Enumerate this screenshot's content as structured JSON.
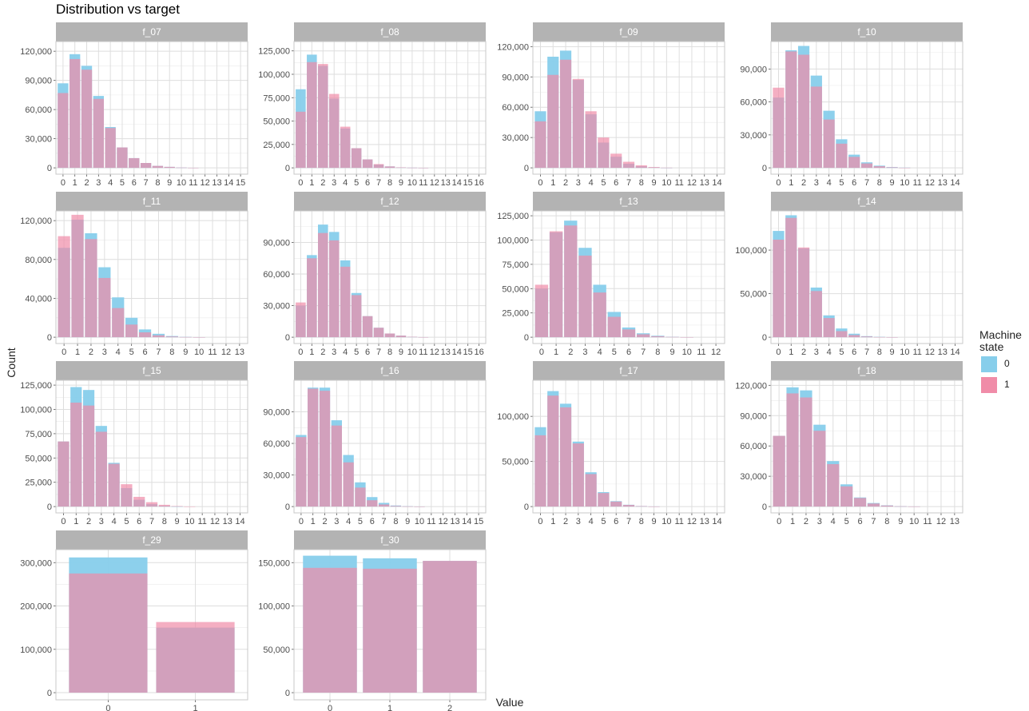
{
  "page": {
    "title": "Distribution vs target",
    "xlabel": "Value",
    "ylabel": "Count"
  },
  "legend": {
    "title_line1": "Machine",
    "title_line2": "state",
    "items": [
      {
        "label": "0",
        "color": "#87CEEB"
      },
      {
        "label": "1",
        "color": "#F08CA8"
      }
    ]
  },
  "chart_data": [
    {
      "type": "bar",
      "title": "f_07",
      "categories": [
        "0",
        "1",
        "2",
        "3",
        "4",
        "5",
        "6",
        "7",
        "8",
        "9",
        "10",
        "11",
        "12",
        "13",
        "14",
        "15"
      ],
      "ylim": [
        0,
        130000
      ],
      "yticks": [
        0,
        30000,
        60000,
        90000,
        120000
      ],
      "yticklabels": [
        "0",
        "30,000",
        "60,000",
        "90,000",
        "120,000"
      ],
      "series": [
        {
          "name": "0",
          "values": [
            87000,
            117000,
            105000,
            74000,
            42000,
            21000,
            10000,
            5000,
            2000,
            1000,
            300,
            100,
            0,
            0,
            0,
            0
          ]
        },
        {
          "name": "1",
          "values": [
            77000,
            112000,
            101000,
            71000,
            41000,
            21000,
            10000,
            5000,
            2000,
            1000,
            300,
            100,
            0,
            0,
            0,
            0
          ]
        }
      ]
    },
    {
      "type": "bar",
      "title": "f_08",
      "categories": [
        "0",
        "1",
        "2",
        "3",
        "4",
        "5",
        "6",
        "7",
        "8",
        "9",
        "10",
        "11",
        "12",
        "13",
        "14",
        "15",
        "16"
      ],
      "ylim": [
        0,
        135000
      ],
      "yticks": [
        0,
        25000,
        50000,
        75000,
        100000,
        125000
      ],
      "yticklabels": [
        "0",
        "25,000",
        "50,000",
        "75,000",
        "100,000",
        "125,000"
      ],
      "series": [
        {
          "name": "0",
          "values": [
            84000,
            121000,
            109000,
            74000,
            42000,
            21000,
            9000,
            3500,
            1500,
            500,
            200,
            50,
            0,
            0,
            0,
            0,
            0
          ]
        },
        {
          "name": "1",
          "values": [
            60000,
            113000,
            111000,
            79000,
            44000,
            21000,
            9000,
            4000,
            1500,
            500,
            200,
            50,
            0,
            0,
            0,
            0,
            0
          ]
        }
      ]
    },
    {
      "type": "bar",
      "title": "f_09",
      "categories": [
        "0",
        "1",
        "2",
        "3",
        "4",
        "5",
        "6",
        "7",
        "8",
        "9",
        "10",
        "11",
        "12",
        "13",
        "14"
      ],
      "ylim": [
        0,
        125000
      ],
      "yticks": [
        0,
        30000,
        60000,
        90000,
        120000
      ],
      "yticklabels": [
        "0",
        "30,000",
        "60,000",
        "90,000",
        "120,000"
      ],
      "series": [
        {
          "name": "0",
          "values": [
            56000,
            110000,
            116000,
            87000,
            53000,
            25000,
            11000,
            4000,
            1500,
            500,
            100,
            0,
            0,
            0,
            0
          ]
        },
        {
          "name": "1",
          "values": [
            46000,
            92000,
            107000,
            88000,
            56000,
            30000,
            14000,
            6000,
            2500,
            800,
            200,
            0,
            0,
            0,
            0
          ]
        }
      ]
    },
    {
      "type": "bar",
      "title": "f_10",
      "categories": [
        "0",
        "1",
        "2",
        "3",
        "4",
        "5",
        "6",
        "7",
        "8",
        "9",
        "10",
        "11",
        "12",
        "13",
        "14"
      ],
      "ylim": [
        0,
        115000
      ],
      "yticks": [
        0,
        30000,
        60000,
        90000
      ],
      "yticklabels": [
        "0",
        "30,000",
        "60,000",
        "90,000"
      ],
      "series": [
        {
          "name": "0",
          "values": [
            64000,
            107000,
            111000,
            84000,
            52000,
            26000,
            12000,
            5000,
            2000,
            700,
            200,
            0,
            0,
            0,
            0
          ]
        },
        {
          "name": "1",
          "values": [
            73000,
            106000,
            103000,
            74000,
            44000,
            22000,
            10000,
            4000,
            1500,
            500,
            100,
            0,
            0,
            0,
            0
          ]
        }
      ]
    },
    {
      "type": "bar",
      "title": "f_11",
      "categories": [
        "0",
        "1",
        "2",
        "3",
        "4",
        "5",
        "6",
        "7",
        "8",
        "9",
        "10",
        "11",
        "12",
        "13"
      ],
      "ylim": [
        0,
        130000
      ],
      "yticks": [
        0,
        40000,
        80000,
        120000
      ],
      "yticklabels": [
        "0",
        "40,000",
        "80,000",
        "120,000"
      ],
      "series": [
        {
          "name": "0",
          "values": [
            92000,
            121000,
            107000,
            72000,
            41000,
            20000,
            8000,
            3500,
            1200,
            300,
            100,
            0,
            0,
            0
          ]
        },
        {
          "name": "1",
          "values": [
            104000,
            126000,
            101000,
            61000,
            30000,
            13000,
            5000,
            2000,
            700,
            200,
            50,
            0,
            0,
            0
          ]
        }
      ]
    },
    {
      "type": "bar",
      "title": "f_12",
      "categories": [
        "0",
        "1",
        "2",
        "3",
        "4",
        "5",
        "6",
        "7",
        "8",
        "9",
        "10",
        "11",
        "12",
        "13",
        "14",
        "15",
        "16"
      ],
      "ylim": [
        0,
        120000
      ],
      "yticks": [
        0,
        30000,
        60000,
        90000
      ],
      "yticklabels": [
        "0",
        "30,000",
        "60,000",
        "90,000"
      ],
      "series": [
        {
          "name": "0",
          "values": [
            30000,
            78000,
            107000,
            100000,
            73000,
            42000,
            20000,
            9000,
            3500,
            1500,
            400,
            100,
            0,
            0,
            0,
            0,
            0
          ]
        },
        {
          "name": "1",
          "values": [
            33000,
            75000,
            99000,
            92000,
            67000,
            40000,
            20000,
            9000,
            3500,
            1500,
            400,
            100,
            0,
            0,
            0,
            0,
            0
          ]
        }
      ]
    },
    {
      "type": "bar",
      "title": "f_13",
      "categories": [
        "0",
        "1",
        "2",
        "3",
        "4",
        "5",
        "6",
        "7",
        "8",
        "9",
        "10",
        "11",
        "12"
      ],
      "ylim": [
        0,
        130000
      ],
      "yticks": [
        0,
        25000,
        50000,
        75000,
        100000,
        125000
      ],
      "yticklabels": [
        "0",
        "25,000",
        "50,000",
        "75,000",
        "100,000",
        "125,000"
      ],
      "series": [
        {
          "name": "0",
          "values": [
            50000,
            108000,
            120000,
            92000,
            54000,
            26000,
            10000,
            4000,
            1500,
            400,
            100,
            0,
            0
          ]
        },
        {
          "name": "1",
          "values": [
            54000,
            109000,
            115000,
            84000,
            46000,
            21000,
            8000,
            3000,
            1000,
            300,
            100,
            0,
            0
          ]
        }
      ]
    },
    {
      "type": "bar",
      "title": "f_14",
      "categories": [
        "0",
        "1",
        "2",
        "3",
        "4",
        "5",
        "6",
        "7",
        "8",
        "9",
        "10",
        "11",
        "12",
        "13",
        "14"
      ],
      "ylim": [
        0,
        145000
      ],
      "yticks": [
        0,
        50000,
        100000
      ],
      "yticklabels": [
        "0",
        "50,000",
        "100,000"
      ],
      "series": [
        {
          "name": "0",
          "values": [
            122000,
            140000,
            102000,
            57000,
            25000,
            10000,
            4000,
            1200,
            400,
            100,
            0,
            0,
            0,
            0,
            0
          ]
        },
        {
          "name": "1",
          "values": [
            112000,
            137000,
            103000,
            53000,
            22000,
            7000,
            2500,
            800,
            200,
            50,
            0,
            0,
            0,
            0,
            0
          ]
        }
      ]
    },
    {
      "type": "bar",
      "title": "f_15",
      "categories": [
        "0",
        "1",
        "2",
        "3",
        "4",
        "5",
        "6",
        "7",
        "8",
        "9",
        "10",
        "11",
        "12",
        "13",
        "14"
      ],
      "ylim": [
        0,
        130000
      ],
      "yticks": [
        0,
        25000,
        50000,
        75000,
        100000,
        125000
      ],
      "yticklabels": [
        "0",
        "25,000",
        "50,000",
        "75,000",
        "100,000",
        "125,000"
      ],
      "series": [
        {
          "name": "0",
          "values": [
            67000,
            123000,
            120000,
            83000,
            45000,
            19000,
            7000,
            2500,
            800,
            200,
            0,
            0,
            0,
            0,
            0
          ]
        },
        {
          "name": "1",
          "values": [
            67000,
            107000,
            104000,
            77000,
            44000,
            23000,
            10000,
            4500,
            1800,
            500,
            100,
            0,
            0,
            0,
            0
          ]
        }
      ]
    },
    {
      "type": "bar",
      "title": "f_16",
      "categories": [
        "0",
        "1",
        "2",
        "3",
        "4",
        "5",
        "6",
        "7",
        "8",
        "9",
        "10",
        "11",
        "12",
        "13",
        "14",
        "15"
      ],
      "ylim": [
        0,
        120000
      ],
      "yticks": [
        0,
        30000,
        60000,
        90000
      ],
      "yticklabels": [
        "0",
        "30,000",
        "60,000",
        "90,000"
      ],
      "series": [
        {
          "name": "0",
          "values": [
            68000,
            113000,
            113000,
            82000,
            49000,
            23000,
            9000,
            3500,
            1000,
            300,
            100,
            0,
            0,
            0,
            0,
            0
          ]
        },
        {
          "name": "1",
          "values": [
            66000,
            112000,
            110000,
            77000,
            42000,
            18000,
            6000,
            2000,
            600,
            200,
            50,
            0,
            0,
            0,
            0,
            0
          ]
        }
      ]
    },
    {
      "type": "bar",
      "title": "f_17",
      "categories": [
        "0",
        "1",
        "2",
        "3",
        "4",
        "5",
        "6",
        "7",
        "8",
        "9",
        "10",
        "11",
        "12",
        "13",
        "14"
      ],
      "ylim": [
        0,
        140000
      ],
      "yticks": [
        0,
        50000,
        100000
      ],
      "yticklabels": [
        "0",
        "50,000",
        "100,000"
      ],
      "series": [
        {
          "name": "0",
          "values": [
            88000,
            128000,
            114000,
            72000,
            38000,
            16000,
            6000,
            2000,
            600,
            150,
            0,
            0,
            0,
            0,
            0
          ]
        },
        {
          "name": "1",
          "values": [
            79000,
            123000,
            110000,
            70000,
            36000,
            15000,
            5500,
            1800,
            500,
            100,
            0,
            0,
            0,
            0,
            0
          ]
        }
      ]
    },
    {
      "type": "bar",
      "title": "f_18",
      "categories": [
        "0",
        "1",
        "2",
        "3",
        "4",
        "5",
        "6",
        "7",
        "8",
        "9",
        "10",
        "11",
        "12",
        "13"
      ],
      "ylim": [
        0,
        125000
      ],
      "yticks": [
        0,
        30000,
        60000,
        90000,
        120000
      ],
      "yticklabels": [
        "0",
        "30,000",
        "60,000",
        "90,000",
        "120,000"
      ],
      "series": [
        {
          "name": "0",
          "values": [
            70000,
            118000,
            115000,
            81000,
            45000,
            22000,
            9000,
            3500,
            1200,
            300,
            100,
            0,
            0,
            0
          ]
        },
        {
          "name": "1",
          "values": [
            70000,
            112000,
            108000,
            75000,
            42000,
            20000,
            8500,
            3000,
            1000,
            300,
            100,
            0,
            0,
            0
          ]
        }
      ]
    },
    {
      "type": "bar",
      "title": "f_29",
      "categories": [
        "0",
        "1"
      ],
      "ylim": [
        0,
        330000
      ],
      "yticks": [
        0,
        100000,
        200000,
        300000
      ],
      "yticklabels": [
        "0",
        "100,000",
        "200,000",
        "300,000"
      ],
      "series": [
        {
          "name": "0",
          "values": [
            312000,
            150000
          ]
        },
        {
          "name": "1",
          "values": [
            275000,
            163000
          ]
        }
      ]
    },
    {
      "type": "bar",
      "title": "f_30",
      "categories": [
        "0",
        "1",
        "2"
      ],
      "ylim": [
        0,
        165000
      ],
      "yticks": [
        0,
        50000,
        100000,
        150000
      ],
      "yticklabels": [
        "0",
        "50,000",
        "100,000",
        "150,000"
      ],
      "series": [
        {
          "name": "0",
          "values": [
            158000,
            155000,
            152000
          ]
        },
        {
          "name": "1",
          "values": [
            144000,
            143000,
            152000
          ]
        }
      ]
    }
  ]
}
